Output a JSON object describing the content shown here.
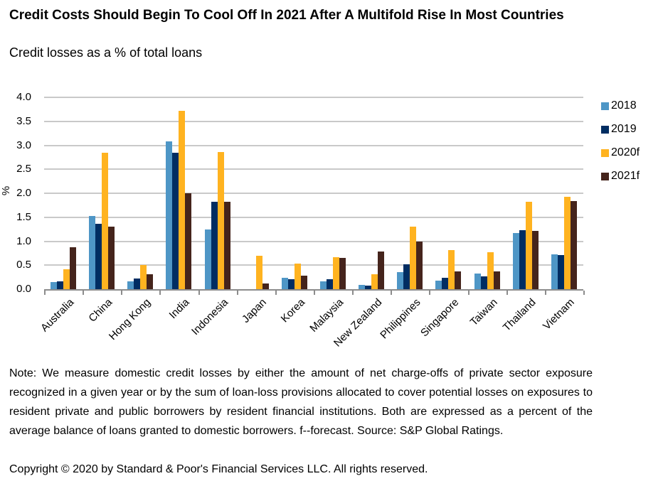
{
  "header": {
    "title": "Credit Costs Should Begin To Cool Off In 2021 After A Multifold Rise In Most Countries",
    "subtitle": "Credit losses as a % of total loans"
  },
  "chart_data": {
    "type": "bar",
    "title": "Credit Costs Should Begin To Cool Off In 2021 After A Multifold Rise In Most Countries",
    "subtitle": "Credit losses as a % of total loans",
    "xlabel": "",
    "ylabel": "%",
    "ylim": [
      0,
      4.0
    ],
    "ytick_step": 0.5,
    "grid": true,
    "legend_position": "right",
    "categories": [
      "Australia",
      "China",
      "Hong Kong",
      "India",
      "Indonesia",
      "Japan",
      "Korea",
      "Malaysia",
      "New Zealand",
      "Philippines",
      "Singapore",
      "Taiwan",
      "Thailand",
      "Vietnam"
    ],
    "series": [
      {
        "name": "2018",
        "color": "#4e96c6",
        "values": [
          0.15,
          1.53,
          0.16,
          3.08,
          1.25,
          0,
          0.24,
          0.17,
          0.09,
          0.35,
          0.18,
          0.33,
          1.17,
          0.73
        ]
      },
      {
        "name": "2019",
        "color": "#002d62",
        "values": [
          0.17,
          1.36,
          0.22,
          2.85,
          1.82,
          0,
          0.21,
          0.21,
          0.07,
          0.52,
          0.23,
          0.27,
          1.23,
          0.71
        ]
      },
      {
        "name": "2020f",
        "color": "#ffb320",
        "values": [
          0.41,
          2.84,
          0.51,
          3.72,
          2.86,
          0.7,
          0.53,
          0.67,
          0.31,
          1.31,
          0.82,
          0.77,
          1.82,
          1.92
        ]
      },
      {
        "name": "2021f",
        "color": "#45241c",
        "values": [
          0.87,
          1.31,
          0.31,
          2.0,
          1.82,
          0.12,
          0.28,
          0.65,
          0.79,
          1.0,
          0.37,
          0.37,
          1.21,
          1.83
        ]
      }
    ],
    "colors": {
      "gridline": "#c9c9c9",
      "axis": "#8c8c8c"
    }
  },
  "footer": {
    "note": "Note: We measure domestic credit losses by either the amount of net charge-offs of private sector exposure recognized in a given year or by the sum of loan-loss provisions allocated to cover potential losses on exposures to resident private and public borrowers by resident financial institutions. Both are expressed as a percent of the average balance of loans granted to domestic borrowers. f--forecast. Source: S&P Global Ratings.",
    "copyright": "Copyright © 2020 by Standard & Poor's Financial Services LLC. All rights reserved."
  }
}
